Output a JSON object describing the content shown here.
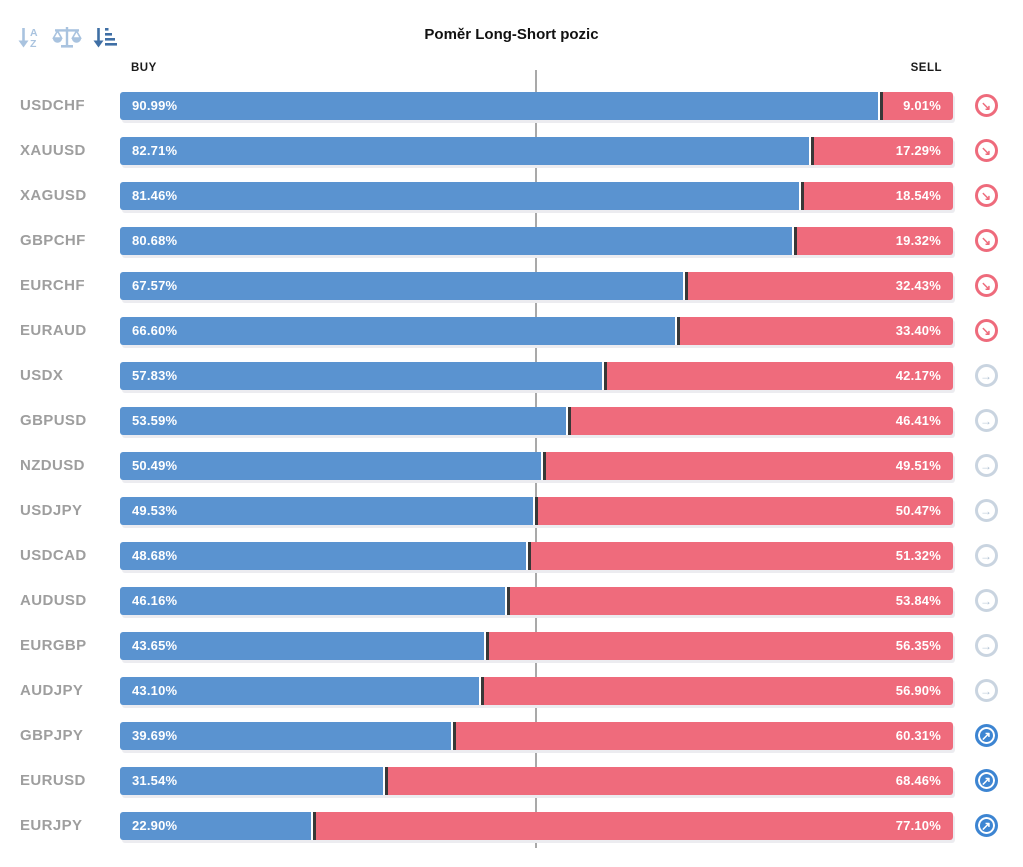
{
  "toolbar": {
    "icons": [
      {
        "name": "sort-alphabetical-icon",
        "active": false
      },
      {
        "name": "balance-scale-icon",
        "active": false
      },
      {
        "name": "sort-amount-icon",
        "active": true
      }
    ],
    "inactive_color": "#a9c3df",
    "active_color": "#3f6fa5"
  },
  "chart_data": {
    "type": "bar",
    "title": "Poměr Long-Short pozic",
    "columns": {
      "buy": "BUY",
      "sell": "SELL"
    },
    "unit": "%",
    "series": [
      {
        "name": "BUY",
        "color": "#5a93d0"
      },
      {
        "name": "SELL",
        "color": "#ef6b7c"
      }
    ],
    "layout": {
      "center_line_at_percent": 50,
      "legend": false,
      "orientation": "horizontal-stacked"
    },
    "signal_glyphs": {
      "down": "↘",
      "neutral": "→",
      "up": "↗"
    },
    "signal_colors": {
      "down": "#ee6b7c",
      "neutral": "#c9d4e0",
      "up": "#3d85d2"
    },
    "rows": [
      {
        "symbol": "USDCHF",
        "buy": 90.99,
        "sell": 9.01,
        "buy_label": "90.99%",
        "sell_label": "9.01%",
        "signal": "down"
      },
      {
        "symbol": "XAUUSD",
        "buy": 82.71,
        "sell": 17.29,
        "buy_label": "82.71%",
        "sell_label": "17.29%",
        "signal": "down"
      },
      {
        "symbol": "XAGUSD",
        "buy": 81.46,
        "sell": 18.54,
        "buy_label": "81.46%",
        "sell_label": "18.54%",
        "signal": "down"
      },
      {
        "symbol": "GBPCHF",
        "buy": 80.68,
        "sell": 19.32,
        "buy_label": "80.68%",
        "sell_label": "19.32%",
        "signal": "down"
      },
      {
        "symbol": "EURCHF",
        "buy": 67.57,
        "sell": 32.43,
        "buy_label": "67.57%",
        "sell_label": "32.43%",
        "signal": "down"
      },
      {
        "symbol": "EURAUD",
        "buy": 66.6,
        "sell": 33.4,
        "buy_label": "66.60%",
        "sell_label": "33.40%",
        "signal": "down"
      },
      {
        "symbol": "USDX",
        "buy": 57.83,
        "sell": 42.17,
        "buy_label": "57.83%",
        "sell_label": "42.17%",
        "signal": "neutral"
      },
      {
        "symbol": "GBPUSD",
        "buy": 53.59,
        "sell": 46.41,
        "buy_label": "53.59%",
        "sell_label": "46.41%",
        "signal": "neutral"
      },
      {
        "symbol": "NZDUSD",
        "buy": 50.49,
        "sell": 49.51,
        "buy_label": "50.49%",
        "sell_label": "49.51%",
        "signal": "neutral"
      },
      {
        "symbol": "USDJPY",
        "buy": 49.53,
        "sell": 50.47,
        "buy_label": "49.53%",
        "sell_label": "50.47%",
        "signal": "neutral"
      },
      {
        "symbol": "USDCAD",
        "buy": 48.68,
        "sell": 51.32,
        "buy_label": "48.68%",
        "sell_label": "51.32%",
        "signal": "neutral"
      },
      {
        "symbol": "AUDUSD",
        "buy": 46.16,
        "sell": 53.84,
        "buy_label": "46.16%",
        "sell_label": "53.84%",
        "signal": "neutral"
      },
      {
        "symbol": "EURGBP",
        "buy": 43.65,
        "sell": 56.35,
        "buy_label": "43.65%",
        "sell_label": "56.35%",
        "signal": "neutral"
      },
      {
        "symbol": "AUDJPY",
        "buy": 43.1,
        "sell": 56.9,
        "buy_label": "43.10%",
        "sell_label": "56.90%",
        "signal": "neutral"
      },
      {
        "symbol": "GBPJPY",
        "buy": 39.69,
        "sell": 60.31,
        "buy_label": "39.69%",
        "sell_label": "60.31%",
        "signal": "up"
      },
      {
        "symbol": "EURUSD",
        "buy": 31.54,
        "sell": 68.46,
        "buy_label": "31.54%",
        "sell_label": "68.46%",
        "signal": "up"
      },
      {
        "symbol": "EURJPY",
        "buy": 22.9,
        "sell": 77.1,
        "buy_label": "22.90%",
        "sell_label": "77.10%",
        "signal": "up"
      }
    ]
  }
}
